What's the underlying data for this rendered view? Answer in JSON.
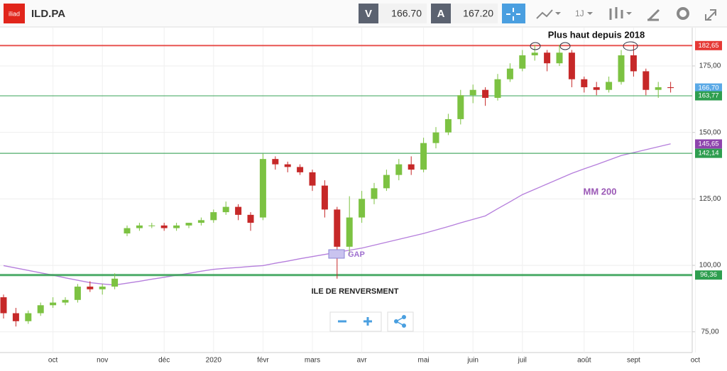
{
  "toolbar": {
    "logo": "iliad",
    "symbol": "ILD.PA",
    "bid_label": "V",
    "bid": "166.70",
    "ask_label": "A",
    "ask": "167.20",
    "interval": "1J"
  },
  "chart_data": {
    "type": "candlestick",
    "categories": [
      null,
      null,
      null,
      null,
      "oct",
      null,
      null,
      null,
      "nov",
      null,
      null,
      null,
      null,
      "déc",
      null,
      null,
      null,
      "2020",
      null,
      null,
      null,
      "févr",
      null,
      null,
      null,
      "mars",
      null,
      null,
      null,
      "avr",
      null,
      null,
      null,
      null,
      "mai",
      null,
      null,
      null,
      "juin",
      null,
      null,
      null,
      "juil",
      null,
      null,
      null,
      null,
      "août",
      null,
      null,
      null,
      "sept",
      null,
      null,
      null,
      null,
      "oct"
    ],
    "open": [
      88,
      82,
      79,
      82,
      85,
      86,
      87,
      92,
      91,
      92,
      112,
      114,
      115,
      115,
      114,
      115,
      116,
      117,
      120,
      122,
      119,
      118,
      140,
      138,
      137,
      135,
      130,
      121,
      107,
      118,
      125,
      129,
      134,
      138,
      136,
      146,
      150,
      155,
      164,
      166,
      163,
      170,
      174,
      179,
      180,
      176,
      180,
      170,
      167,
      166,
      169,
      179,
      173,
      166,
      167,
      null,
      null
    ],
    "high": [
      89,
      84,
      83,
      86,
      88,
      88,
      93,
      94,
      93,
      97,
      115,
      116,
      116,
      116,
      116,
      116,
      118,
      121,
      124,
      123,
      120,
      142,
      141,
      139,
      138,
      136,
      132,
      122,
      126,
      128,
      131,
      136,
      140,
      141,
      148,
      152,
      157,
      166,
      168,
      167,
      172,
      176,
      181,
      183,
      181,
      183,
      181,
      171,
      169,
      171,
      181,
      183,
      174,
      169,
      169,
      null,
      null
    ],
    "low": [
      80,
      77,
      78,
      81,
      84,
      85,
      86,
      90,
      89,
      91,
      111,
      113,
      114,
      113,
      113,
      114,
      115,
      116,
      119,
      117,
      113,
      117,
      136,
      135,
      134,
      128,
      118,
      95,
      104,
      116,
      123,
      128,
      132,
      134,
      135,
      144,
      149,
      153,
      161,
      160,
      162,
      169,
      173,
      177,
      173,
      175,
      167,
      165,
      164,
      165,
      168,
      171,
      164,
      163,
      165,
      null,
      null
    ],
    "close": [
      82,
      79,
      82,
      85,
      86,
      87,
      92,
      91,
      92,
      95,
      114,
      115,
      115,
      114,
      115,
      116,
      117,
      120,
      122,
      119,
      116,
      140,
      138,
      137,
      135,
      130,
      121,
      107,
      118,
      125,
      129,
      134,
      138,
      136,
      146,
      150,
      155,
      164,
      166,
      163,
      170,
      174,
      179,
      180,
      176,
      180,
      170,
      167,
      166,
      169,
      179,
      173,
      166,
      167,
      166.7,
      null,
      null
    ],
    "up_color": "#7cc242",
    "down_color": "#c62828",
    "ma": {
      "name": "MM 200",
      "color": "#b57edc",
      "values": [
        99.9,
        99.0,
        98.1,
        97.2,
        96.3,
        95.3,
        94.4,
        93.5,
        93.0,
        92.6,
        93.3,
        94.0,
        94.8,
        95.5,
        96.3,
        97.0,
        97.8,
        98.5,
        98.9,
        99.2,
        99.6,
        99.9,
        100.8,
        101.6,
        102.5,
        103.3,
        104.1,
        104.9,
        105.7,
        106.5,
        107.6,
        108.7,
        109.8,
        110.9,
        112,
        113.3,
        114.6,
        116.0,
        117.3,
        118.6,
        121.3,
        123.9,
        126.6,
        128.6,
        130.6,
        132.6,
        134.6,
        136.3,
        137.9,
        139.6,
        141.3,
        142.4,
        143.5,
        144.6,
        145.7,
        null,
        null
      ]
    },
    "ylim": [
      67.2,
      189.4
    ],
    "yticks": [
      {
        "value": 75,
        "label": "75,00"
      },
      {
        "value": 100,
        "label": "100,00"
      },
      {
        "value": 125,
        "label": "125,00"
      },
      {
        "value": 150,
        "label": "150,00"
      },
      {
        "value": 175,
        "label": "175,00"
      }
    ],
    "grid": true,
    "levels": [
      {
        "value": 182.65,
        "label": "182,65",
        "color": "#e53935",
        "line": true
      },
      {
        "value": 166.7,
        "label": "166,70",
        "color": "#5aa9e6",
        "line": false
      },
      {
        "value": 163.77,
        "label": "163,77",
        "color": "#2e9e4f",
        "line": true
      },
      {
        "value": 145.65,
        "label": "145,65",
        "color": "#8e44ad",
        "line": false
      },
      {
        "value": 142.14,
        "label": "142,14",
        "color": "#2e9e4f",
        "line": true
      },
      {
        "value": 96.36,
        "label": "96,36",
        "color": "#2e9e4f",
        "line": true
      }
    ],
    "annotations": {
      "high": "Plus haut depuis 2018",
      "gap": "GAP",
      "island": "ILE DE RENVERSMENT"
    }
  }
}
